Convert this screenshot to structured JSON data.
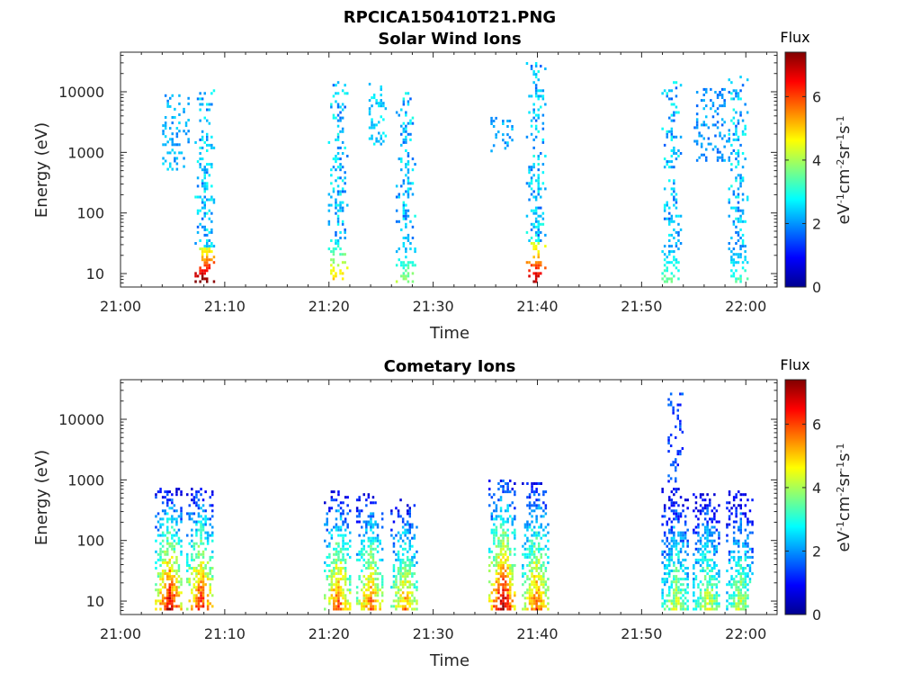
{
  "figure": {
    "title": "RPCICA150410T21.PNG"
  },
  "chart_data": [
    {
      "type": "heatmap",
      "title": "Solar Wind Ions",
      "xlabel": "Time",
      "ylabel": "Energy (eV)",
      "x_tick_labels": [
        "21:00",
        "21:10",
        "21:20",
        "21:30",
        "21:40",
        "21:50",
        "22:00"
      ],
      "x_ticks_minutes": [
        0,
        10,
        20,
        30,
        40,
        50,
        60
      ],
      "xlim_minutes": [
        0,
        63
      ],
      "yscale": "log",
      "y_tick_labels": [
        "10",
        "100",
        "1000",
        "10000"
      ],
      "y_ticks": [
        10,
        100,
        1000,
        10000
      ],
      "ylim": [
        6,
        45000
      ],
      "colorbar": {
        "title": "Flux",
        "label": "eV^-1 cm^-2 sr^-1 s^-1",
        "ticks": [
          0,
          2,
          4,
          6
        ],
        "range": [
          0,
          7.4
        ],
        "colormap": "jet"
      },
      "bursts": [
        {
          "t": 8.0,
          "peak": 7.2,
          "emax": 10500
        },
        {
          "t": 20.8,
          "peak": 4.8,
          "emax": 14000
        },
        {
          "t": 27.3,
          "peak": 3.6,
          "emax": 9000
        },
        {
          "t": 39.8,
          "peak": 6.8,
          "emax": 30000
        },
        {
          "t": 52.8,
          "peak": 3.2,
          "emax": 14000
        },
        {
          "t": 59.2,
          "peak": 3.0,
          "emax": 17500
        }
      ],
      "sparse_groups": [
        {
          "t_start": 4.0,
          "t_end": 6.5,
          "e_low": 500,
          "e_high": 9000,
          "flux": 2.2
        },
        {
          "t_start": 23.8,
          "t_end": 25.5,
          "e_low": 1300,
          "e_high": 13000,
          "flux": 2.4
        },
        {
          "t_start": 35.5,
          "t_end": 37.5,
          "e_low": 1000,
          "e_high": 3500,
          "flux": 2.2
        },
        {
          "t_start": 55.0,
          "t_end": 58.5,
          "e_low": 700,
          "e_high": 11000,
          "flux": 2.0
        }
      ]
    },
    {
      "type": "heatmap",
      "title": "Cometary Ions",
      "xlabel": "Time",
      "ylabel": "Energy (eV)",
      "x_tick_labels": [
        "21:00",
        "21:10",
        "21:20",
        "21:30",
        "21:40",
        "21:50",
        "22:00"
      ],
      "x_ticks_minutes": [
        0,
        10,
        20,
        30,
        40,
        50,
        60
      ],
      "xlim_minutes": [
        0,
        63
      ],
      "yscale": "log",
      "y_tick_labels": [
        "10",
        "100",
        "1000",
        "10000"
      ],
      "y_ticks": [
        10,
        100,
        1000,
        10000
      ],
      "ylim": [
        6,
        45000
      ],
      "colorbar": {
        "title": "Flux",
        "label": "eV^-1 cm^-2 sr^-1 s^-1",
        "ticks": [
          0,
          2,
          4,
          6
        ],
        "range": [
          0,
          7.4
        ],
        "colormap": "jet"
      },
      "bursts": [
        {
          "t": 4.6,
          "peak": 7.0,
          "emax": 700
        },
        {
          "t": 7.6,
          "peak": 6.6,
          "emax": 700
        },
        {
          "t": 20.8,
          "peak": 6.2,
          "emax": 650
        },
        {
          "t": 23.9,
          "peak": 6.0,
          "emax": 550
        },
        {
          "t": 27.2,
          "peak": 5.6,
          "emax": 450
        },
        {
          "t": 36.6,
          "peak": 7.3,
          "emax": 1000
        },
        {
          "t": 39.8,
          "peak": 6.0,
          "emax": 900
        },
        {
          "t": 53.2,
          "peak": 4.4,
          "emax": 700
        },
        {
          "t": 56.2,
          "peak": 4.6,
          "emax": 600
        },
        {
          "t": 59.4,
          "peak": 4.4,
          "emax": 650
        }
      ],
      "sparse_groups": [
        {
          "t_start": 52.5,
          "t_end": 54.0,
          "e_low": 900,
          "e_high": 27000,
          "flux": 1.4
        }
      ]
    }
  ]
}
